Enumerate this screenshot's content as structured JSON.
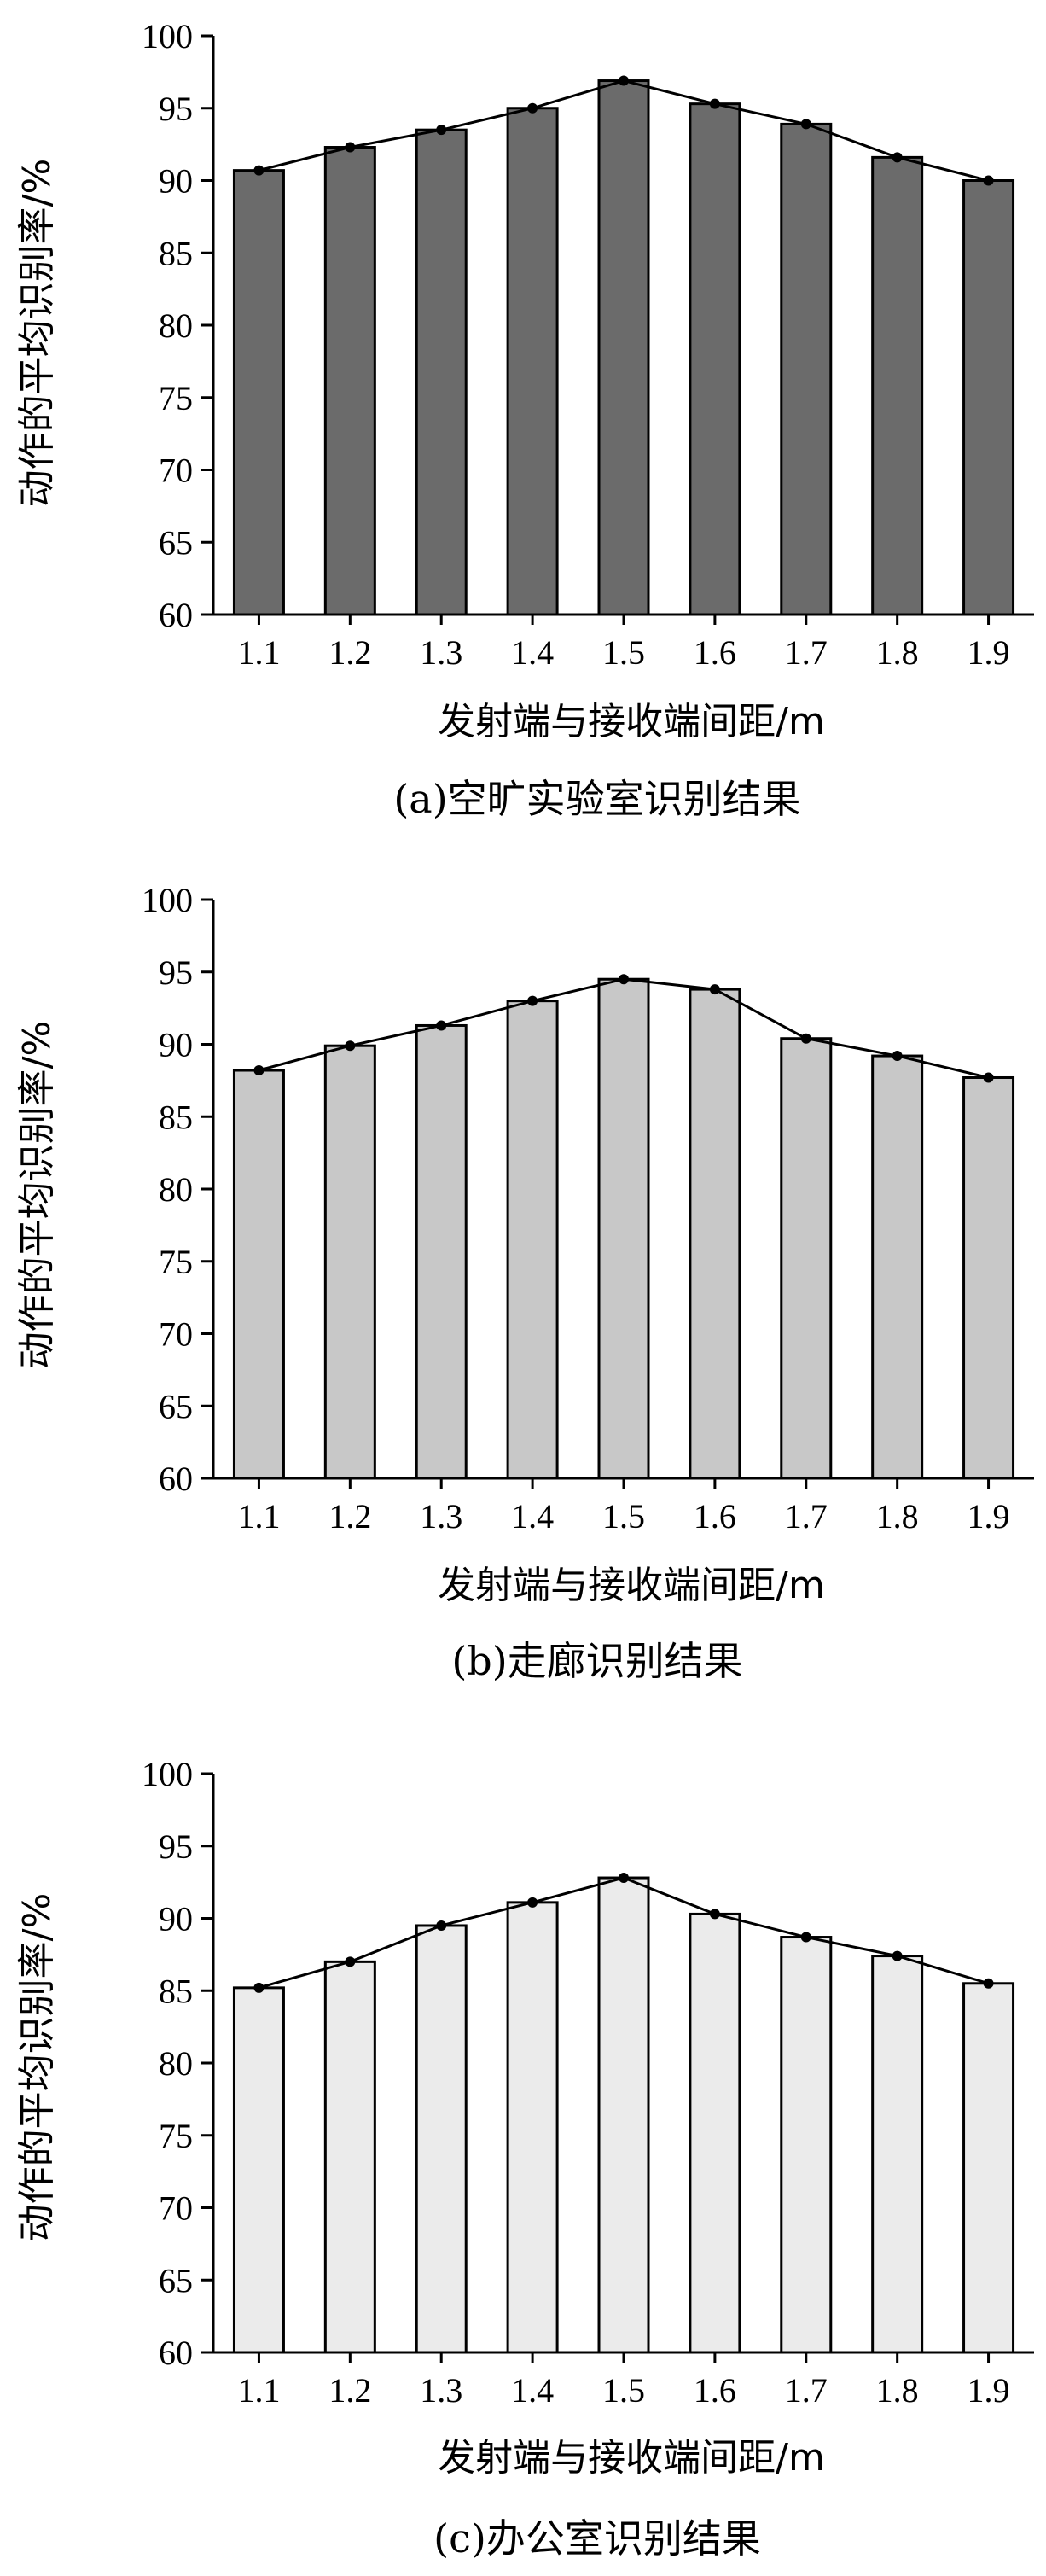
{
  "chart_data": [
    {
      "type": "bar",
      "caption": "(a)空旷实验室识别结果",
      "xlabel": "发射端与接收端间距/m",
      "ylabel": "动作的平均识别率/%",
      "categories": [
        "1.1",
        "1.2",
        "1.3",
        "1.4",
        "1.5",
        "1.6",
        "1.7",
        "1.8",
        "1.9"
      ],
      "values": [
        90.7,
        92.3,
        93.5,
        95.0,
        96.9,
        95.3,
        93.9,
        91.6,
        90.0
      ],
      "yticks": [
        "60",
        "65",
        "70",
        "75",
        "80",
        "85",
        "90",
        "95",
        "100"
      ],
      "ylim": [
        60,
        100
      ],
      "bar_color": "#6b6b6b",
      "line_overlay": true,
      "grid": false
    },
    {
      "type": "bar",
      "caption": "(b)走廊识别结果",
      "xlabel": "发射端与接收端间距/m",
      "ylabel": "动作的平均识别率/%",
      "categories": [
        "1.1",
        "1.2",
        "1.3",
        "1.4",
        "1.5",
        "1.6",
        "1.7",
        "1.8",
        "1.9"
      ],
      "values": [
        88.2,
        89.9,
        91.3,
        93.0,
        94.5,
        93.8,
        90.4,
        89.2,
        87.7
      ],
      "yticks": [
        "60",
        "65",
        "70",
        "75",
        "80",
        "85",
        "90",
        "95",
        "100"
      ],
      "ylim": [
        60,
        100
      ],
      "bar_color": "#c8c8c8",
      "line_overlay": true,
      "grid": false
    },
    {
      "type": "bar",
      "caption": "(c)办公室识别结果",
      "xlabel": "发射端与接收端间距/m",
      "ylabel": "动作的平均识别率/%",
      "categories": [
        "1.1",
        "1.2",
        "1.3",
        "1.4",
        "1.5",
        "1.6",
        "1.7",
        "1.8",
        "1.9"
      ],
      "values": [
        85.2,
        87.0,
        89.5,
        91.1,
        92.8,
        90.3,
        88.7,
        87.4,
        85.5
      ],
      "yticks": [
        "60",
        "65",
        "70",
        "75",
        "80",
        "85",
        "90",
        "95",
        "100"
      ],
      "ylim": [
        60,
        100
      ],
      "bar_color": "#ebebeb",
      "line_overlay": true,
      "grid": false
    }
  ]
}
